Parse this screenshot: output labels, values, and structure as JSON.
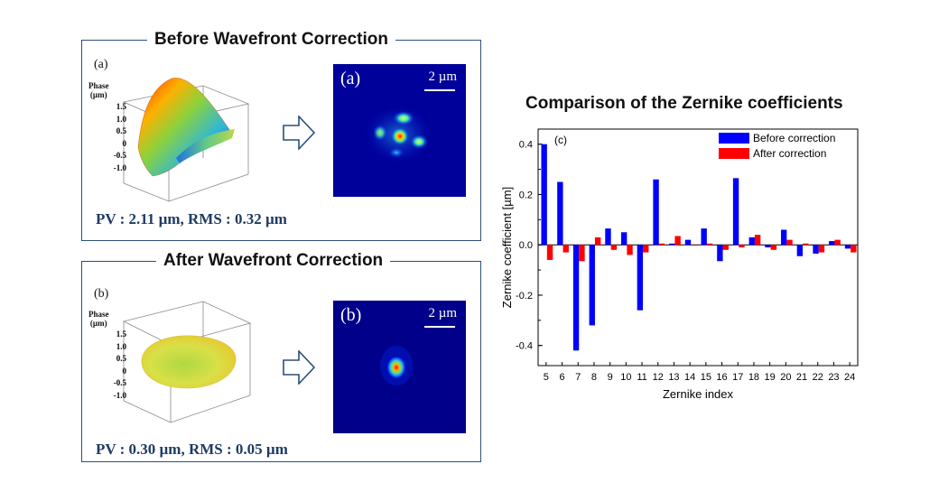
{
  "before": {
    "title": "Before Wavefront Correction",
    "plot_label": "(a)",
    "axis_title": [
      "Phase",
      "(µm)"
    ],
    "axis_ticks": [
      "1.5",
      "1.0",
      "0.5",
      "0",
      "-0.5",
      "-1.0"
    ],
    "psf_label": "(a)",
    "scale_label": "2 µm",
    "stats": "PV : 2.11 µm, RMS : 0.32 µm"
  },
  "after": {
    "title": "After Wavefront Correction",
    "plot_label": "(b)",
    "axis_title": [
      "Phase",
      "(µm)"
    ],
    "axis_ticks": [
      "1.5",
      "1.0",
      "0.5",
      "0",
      "-0.5",
      "-1.0"
    ],
    "psf_label": "(b)",
    "scale_label": "2 µm",
    "stats": "PV : 0.30 µm, RMS : 0.05 µm"
  },
  "chart_data": {
    "type": "bar",
    "title": "Comparison of the Zernike coefficients",
    "panel_label": "(c)",
    "xlabel": "Zernike index",
    "ylabel": "Zernike coefficient [µm]",
    "categories": [
      "5",
      "6",
      "7",
      "8",
      "9",
      "10",
      "11",
      "12",
      "13",
      "14",
      "15",
      "16",
      "17",
      "18",
      "19",
      "20",
      "21",
      "22",
      "23",
      "24"
    ],
    "ylim": [
      -0.48,
      0.46
    ],
    "yticks": [
      "0.4",
      "0.2",
      "0.0",
      "-0.2",
      "-0.4"
    ],
    "ytick_values": [
      0.4,
      0.2,
      0.0,
      -0.2,
      -0.4
    ],
    "legend_position": "top-right",
    "series": [
      {
        "name": "Before correction",
        "color": "#0000ff",
        "values": [
          0.4,
          0.25,
          -0.42,
          -0.32,
          0.065,
          0.05,
          -0.26,
          0.26,
          0.005,
          0.02,
          0.065,
          -0.065,
          0.265,
          0.03,
          -0.01,
          0.06,
          -0.045,
          -0.035,
          0.015,
          -0.015
        ]
      },
      {
        "name": "After correction",
        "color": "#ff0000",
        "values": [
          -0.06,
          -0.03,
          -0.065,
          0.03,
          -0.02,
          -0.04,
          -0.03,
          0.005,
          0.035,
          0.0,
          0.005,
          -0.02,
          -0.01,
          0.04,
          -0.02,
          0.02,
          0.005,
          -0.03,
          0.02,
          -0.03
        ]
      }
    ]
  }
}
